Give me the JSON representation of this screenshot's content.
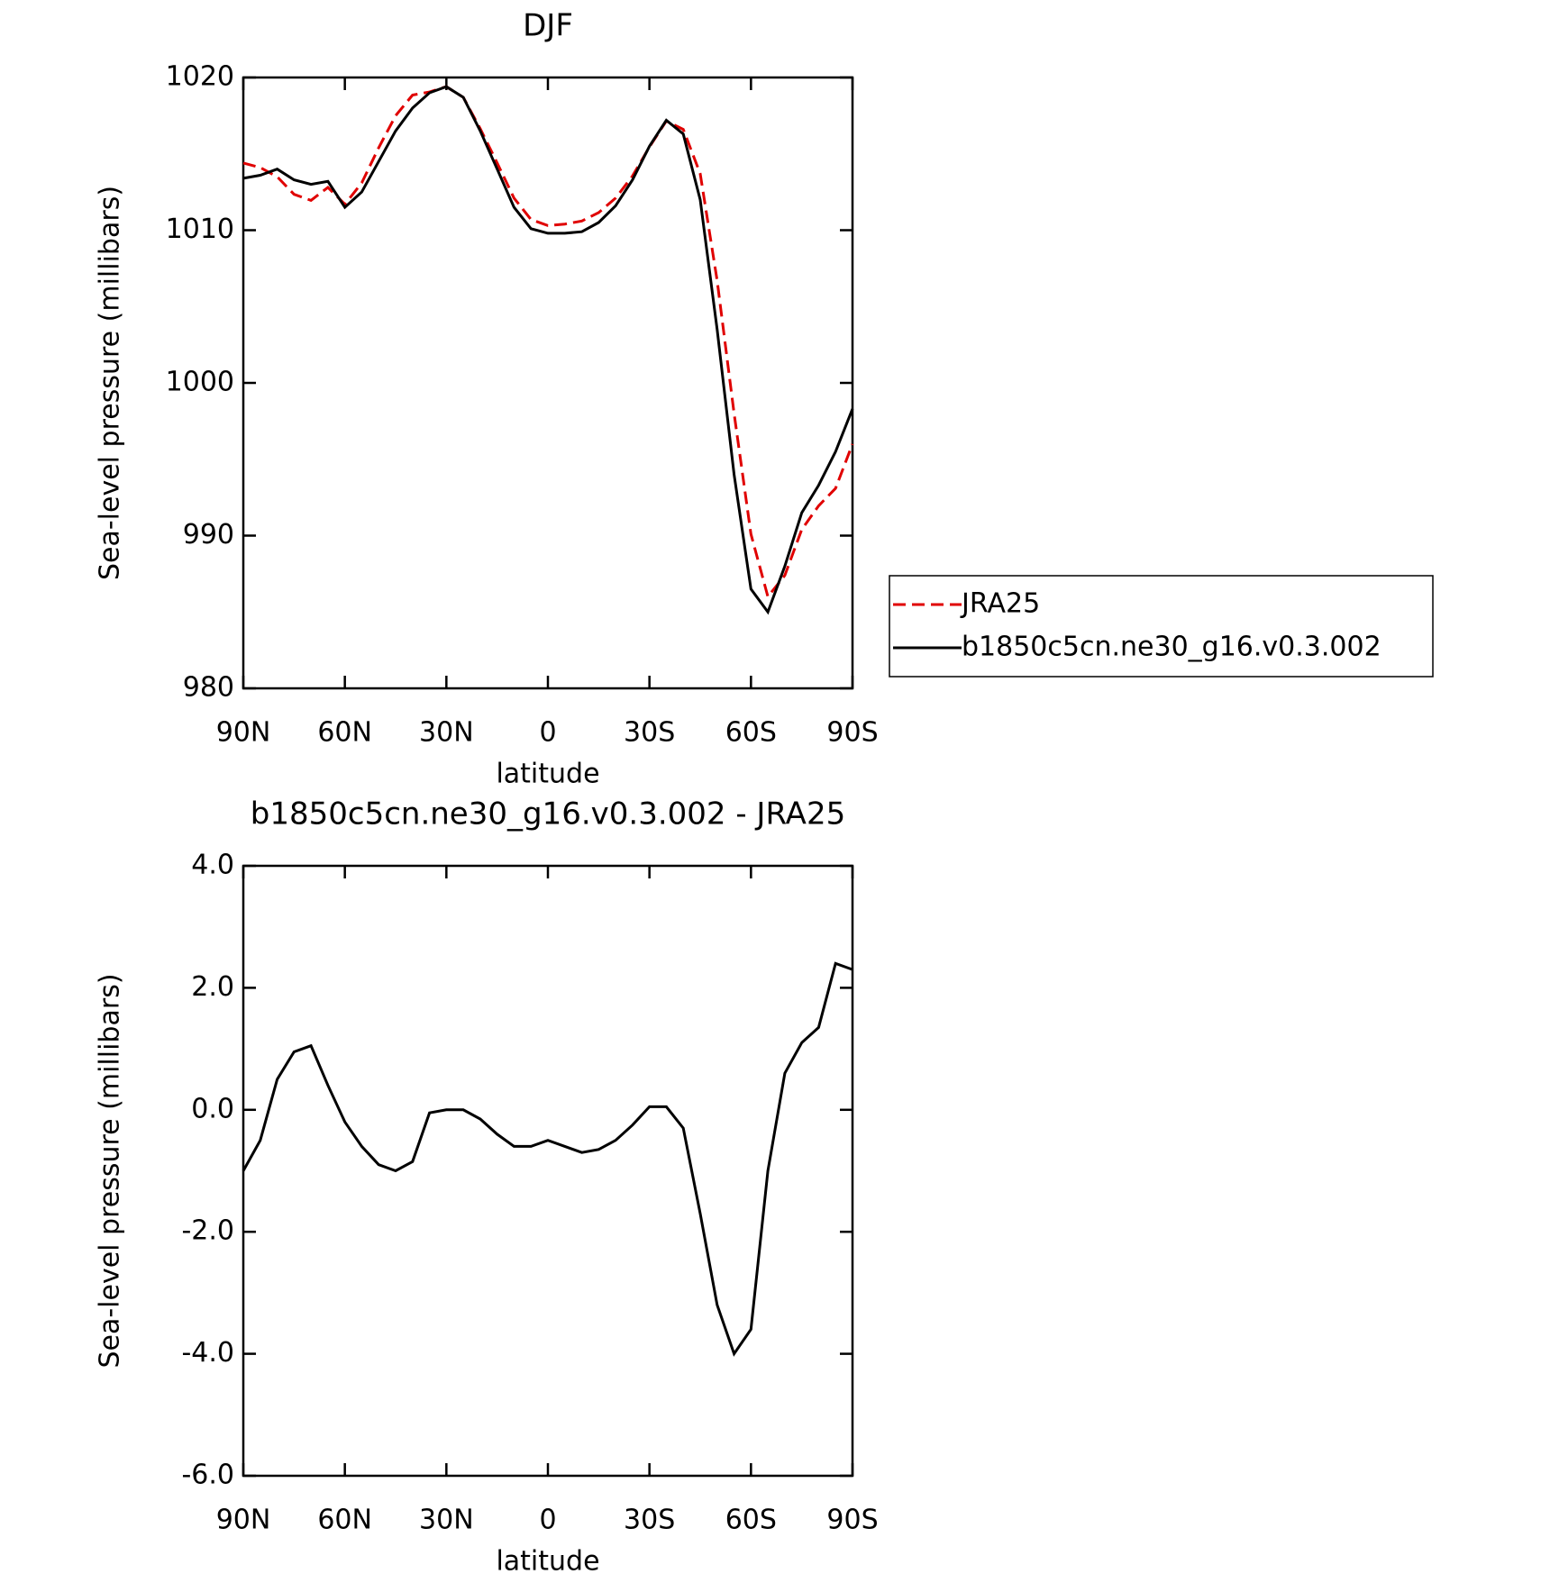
{
  "chart_data": [
    {
      "type": "line",
      "title": "DJF",
      "xlabel": "latitude",
      "ylabel": "Sea-level pressure (millibars)",
      "x": [
        90,
        85,
        80,
        75,
        70,
        65,
        60,
        55,
        50,
        45,
        40,
        35,
        30,
        25,
        20,
        15,
        10,
        5,
        0,
        -5,
        -10,
        -15,
        -20,
        -25,
        -30,
        -35,
        -40,
        -45,
        -50,
        -55,
        -60,
        -65,
        -70,
        -75,
        -80,
        -85,
        -90
      ],
      "xlim": [
        90,
        -90
      ],
      "xticks": [
        {
          "value": 90,
          "label": "90N"
        },
        {
          "value": 60,
          "label": "60N"
        },
        {
          "value": 30,
          "label": "30N"
        },
        0,
        {
          "value": -30,
          "label": "30S"
        },
        {
          "value": -60,
          "label": "60S"
        },
        {
          "value": -90,
          "label": "90S"
        }
      ],
      "ylim": [
        980,
        1020
      ],
      "yticks": [
        980,
        990,
        1000,
        1010,
        1020
      ],
      "series": [
        {
          "name": "JRA25",
          "color": "#e00000",
          "dashed": true,
          "values": [
            1014.4,
            1014.1,
            1013.5,
            1012.35,
            1011.95,
            1012.8,
            1011.7,
            1013.1,
            1015.4,
            1017.5,
            1018.85,
            1019.05,
            1019.4,
            1018.7,
            1016.65,
            1014.4,
            1012.1,
            1010.7,
            1010.3,
            1010.4,
            1010.6,
            1011.15,
            1012.1,
            1013.55,
            1015.45,
            1017.15,
            1016.6,
            1013.7,
            1006.7,
            998.0,
            990.1,
            986.0,
            987.4,
            990.4,
            991.95,
            993.1,
            996.0
          ]
        },
        {
          "name": "b1850c5cn.ne30_g16.v0.3.002",
          "color": "#000000",
          "dashed": false,
          "values": [
            1013.4,
            1013.6,
            1014.0,
            1013.3,
            1013.0,
            1013.2,
            1011.5,
            1012.5,
            1014.5,
            1016.5,
            1018.0,
            1019.0,
            1019.4,
            1018.7,
            1016.5,
            1014.0,
            1011.5,
            1010.1,
            1009.8,
            1009.8,
            1009.9,
            1010.5,
            1011.6,
            1013.3,
            1015.5,
            1017.2,
            1016.3,
            1012.0,
            1003.5,
            994.0,
            986.5,
            985.0,
            988.0,
            991.5,
            993.3,
            995.5,
            998.3
          ]
        }
      ]
    },
    {
      "type": "line",
      "title": "b1850c5cn.ne30_g16.v0.3.002 - JRA25",
      "xlabel": "latitude",
      "ylabel": "Sea-level pressure (millibars)",
      "x": [
        90,
        85,
        80,
        75,
        70,
        65,
        60,
        55,
        50,
        45,
        40,
        35,
        30,
        25,
        20,
        15,
        10,
        5,
        0,
        -5,
        -10,
        -15,
        -20,
        -25,
        -30,
        -35,
        -40,
        -45,
        -50,
        -55,
        -60,
        -65,
        -70,
        -75,
        -80,
        -85,
        -90
      ],
      "xlim": [
        90,
        -90
      ],
      "xticks": [
        {
          "value": 90,
          "label": "90N"
        },
        {
          "value": 60,
          "label": "60N"
        },
        {
          "value": 30,
          "label": "30N"
        },
        0,
        {
          "value": -30,
          "label": "30S"
        },
        {
          "value": -60,
          "label": "60S"
        },
        {
          "value": -90,
          "label": "90S"
        }
      ],
      "ylim": [
        -6,
        4
      ],
      "yticks": [
        {
          "value": -6,
          "label": "-6.0"
        },
        {
          "value": -4,
          "label": "-4.0"
        },
        {
          "value": -2,
          "label": "-2.0"
        },
        {
          "value": 0,
          "label": "0.0"
        },
        {
          "value": 2,
          "label": "2.0"
        },
        {
          "value": 4,
          "label": "4.0"
        }
      ],
      "series": [
        {
          "color": "#000000",
          "dashed": false,
          "values": [
            -1.0,
            -0.5,
            0.5,
            0.95,
            1.05,
            0.4,
            -0.2,
            -0.6,
            -0.9,
            -1.0,
            -0.85,
            -0.05,
            0.0,
            0.0,
            -0.15,
            -0.4,
            -0.6,
            -0.6,
            -0.5,
            -0.6,
            -0.7,
            -0.65,
            -0.5,
            -0.25,
            0.05,
            0.05,
            -0.3,
            -1.7,
            -3.2,
            -4.0,
            -3.6,
            -1.0,
            0.6,
            1.1,
            1.35,
            2.4,
            2.3
          ]
        }
      ]
    }
  ]
}
